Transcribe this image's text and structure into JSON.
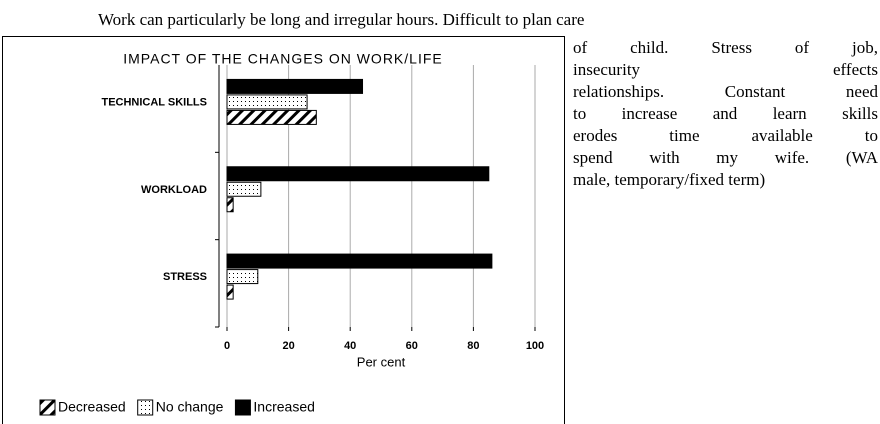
{
  "paragraph_lines": [
    "Work can particularly be long and irregular hours. Difficult to plan care",
    "of child. Stress of job,",
    "insecurity effects",
    "relationships. Constant need",
    "to increase and learn skills",
    "erodes time available to",
    "spend with my wife. (WA",
    "male, temporary/fixed term)"
  ],
  "chart_data": {
    "type": "bar",
    "orientation": "horizontal",
    "title": "IMPACT OF THE CHANGES ON WORK/LIFE",
    "categories": [
      "TECHNICAL SKILLS",
      "WORKLOAD",
      "STRESS"
    ],
    "series": [
      {
        "name": "Decreased",
        "color": "#000000",
        "pattern": "hatch",
        "values": [
          29,
          2,
          2
        ]
      },
      {
        "name": "No change",
        "color": "#000000",
        "pattern": "dots",
        "values": [
          26,
          11,
          10
        ]
      },
      {
        "name": "Increased",
        "color": "#000000",
        "pattern": "solid",
        "values": [
          44,
          85,
          86
        ]
      }
    ],
    "xlabel": "Per cent",
    "xlim": [
      0,
      100
    ],
    "xticks": [
      0,
      20,
      40,
      60,
      80,
      100
    ],
    "grid": true,
    "legend": "bottom"
  }
}
